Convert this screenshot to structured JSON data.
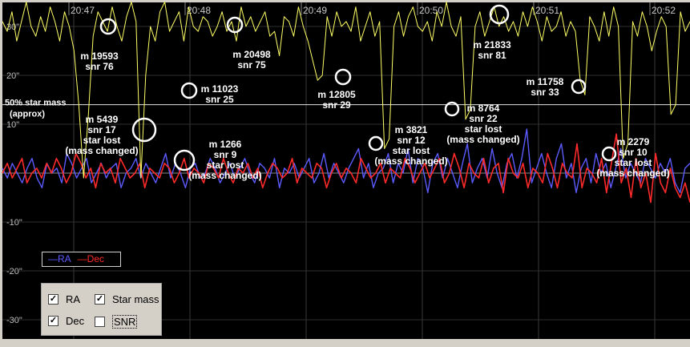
{
  "chart_data": {
    "type": "line",
    "time_labels": [
      "20:47",
      "20:48",
      "20:49",
      "20:50",
      "20:51",
      "20:52"
    ],
    "y_ticks": [
      30,
      20,
      10,
      0,
      -10,
      -20,
      -30
    ],
    "y_tick_labels": [
      "30\"",
      "20\"",
      "10\"",
      "",
      "-10\"",
      "-20\"",
      "-30\""
    ],
    "ylim": [
      -33,
      35
    ],
    "reference_line": {
      "label_1": "50% star mass",
      "label_2": "(approx)",
      "value": 14
    },
    "series": [
      {
        "name": "RA",
        "color": "#5b5bff",
        "values": [
          1,
          -1,
          2,
          0,
          -2,
          1,
          3,
          -1,
          -3,
          2,
          0,
          1,
          -2,
          4,
          2,
          -1,
          1,
          3,
          -2,
          0,
          2,
          -1,
          1,
          2,
          -3,
          0,
          1,
          3,
          -1,
          2,
          0,
          -2,
          1,
          4,
          -1,
          2,
          0,
          -3,
          1,
          2,
          -1,
          0,
          3,
          1,
          -2,
          0,
          2,
          -1,
          1,
          3,
          0,
          -2,
          2,
          1,
          -1,
          3,
          -3,
          1,
          0,
          2,
          -1,
          1,
          3,
          -2,
          0,
          4,
          -1,
          2,
          0,
          -2,
          1,
          3,
          5,
          -1,
          2,
          -3,
          0,
          1,
          4,
          -2,
          2,
          0,
          5,
          -2,
          3,
          1,
          -4,
          2,
          4,
          -1,
          3,
          0,
          -3,
          2,
          6,
          -2,
          1,
          3,
          -1,
          5,
          0,
          -3,
          2,
          4,
          -1,
          3,
          9,
          -2,
          1,
          4,
          0,
          -3,
          3,
          6,
          -1,
          2,
          -4,
          1,
          3,
          -2,
          4,
          0,
          2,
          -3,
          1,
          5,
          -1,
          2,
          0,
          -2,
          3,
          1,
          -1,
          2,
          0,
          3,
          -2,
          -4,
          1,
          2
        ]
      },
      {
        "name": "Dec",
        "color": "#ff2a2a",
        "values": [
          0,
          2,
          -1,
          1,
          3,
          -2,
          0,
          1,
          -1,
          2,
          0,
          3,
          1,
          -2,
          0,
          4,
          2,
          -1,
          1,
          -3,
          2,
          0,
          1,
          -2,
          3,
          1,
          -1,
          0,
          2,
          -3,
          1,
          0,
          -1,
          2,
          1,
          -2,
          0,
          3,
          -1,
          1,
          0,
          -2,
          2,
          1,
          -1,
          3,
          0,
          -2,
          1,
          0,
          2,
          -1,
          1,
          -3,
          0,
          2,
          1,
          -1,
          0,
          3,
          -2,
          1,
          0,
          -1,
          2,
          1,
          -3,
          0,
          2,
          -1,
          1,
          0,
          -2,
          3,
          1,
          -1,
          0,
          2,
          -2,
          1,
          0,
          -1,
          3,
          1,
          -2,
          0,
          2,
          -1,
          1,
          3,
          -2,
          0,
          4,
          1,
          -3,
          2,
          0,
          -1,
          3,
          -2,
          1,
          2,
          -4,
          3,
          0,
          -1,
          2,
          -3,
          1,
          0,
          -2,
          4,
          1,
          -3,
          2,
          0,
          -1,
          6,
          -3,
          1,
          0,
          -2,
          3,
          -4,
          2,
          8,
          -2,
          1,
          -5,
          3,
          -3,
          0,
          -6,
          4,
          -2,
          -4,
          1,
          -3,
          -5,
          -2,
          -6
        ]
      },
      {
        "name": "Star mass",
        "color": "#ffff66",
        "values": [
          31,
          29,
          33,
          27,
          31,
          35,
          30,
          28,
          32,
          29,
          34,
          31,
          27,
          33,
          30,
          25,
          14,
          -1,
          12,
          28,
          33,
          31,
          29,
          34,
          30,
          27,
          32,
          35,
          31,
          -1,
          20,
          30,
          27,
          33,
          35,
          29,
          31,
          33,
          27,
          34,
          30,
          29,
          32,
          31,
          28,
          30,
          33,
          29,
          31,
          27,
          34,
          30,
          32,
          29,
          31,
          33,
          28,
          29,
          24,
          32,
          31,
          28,
          34,
          30,
          27,
          23,
          19,
          20,
          32,
          28,
          33,
          30,
          31,
          29,
          34,
          27,
          30,
          33,
          28,
          31,
          5,
          7,
          30,
          33,
          28,
          32,
          34,
          30,
          29,
          31,
          27,
          33,
          30,
          35,
          30,
          28,
          32,
          11,
          13,
          30,
          33,
          28,
          31,
          34,
          30,
          32,
          29,
          31,
          28,
          33,
          30,
          34,
          31,
          27,
          32,
          29,
          30,
          33,
          28,
          31,
          29,
          19,
          16,
          32,
          30,
          27,
          33,
          28,
          34,
          30,
          3,
          6,
          31,
          28,
          33,
          30,
          25,
          29,
          32,
          30,
          12,
          14,
          33,
          29,
          31
        ]
      }
    ],
    "annotations": [
      {
        "lines": [
          "m 19593",
          "snr 76"
        ]
      },
      {
        "lines": [
          "m 20498",
          "snr 75"
        ]
      },
      {
        "lines": [
          "m 21833",
          "snr 81"
        ]
      },
      {
        "lines": [
          "m 11023",
          "snr 25"
        ]
      },
      {
        "lines": [
          "m 12805",
          "snr 29"
        ]
      },
      {
        "lines": [
          "m 11758",
          "snr 33"
        ]
      },
      {
        "lines": [
          "m 5439",
          "snr 17",
          "star lost",
          "(mass changed)"
        ]
      },
      {
        "lines": [
          "m 1266",
          "snr 9",
          "star lost",
          "(mass changed)"
        ]
      },
      {
        "lines": [
          "m 3821",
          "snr 12",
          "star lost",
          "(mass changed)"
        ]
      },
      {
        "lines": [
          "m 8764",
          "snr 22",
          "star lost",
          "(mass changed)"
        ]
      },
      {
        "lines": [
          "m 2279",
          "snr 10",
          "star lost",
          "(mass changed)"
        ]
      }
    ],
    "legend": {
      "ra": "—RA",
      "dec": "—Dec"
    }
  },
  "controls": {
    "ra": {
      "label": "RA",
      "checked": true
    },
    "star_mass": {
      "label": "Star mass",
      "checked": true
    },
    "dec": {
      "label": "Dec",
      "checked": true
    },
    "snr": {
      "label": "SNR",
      "checked": false
    }
  }
}
